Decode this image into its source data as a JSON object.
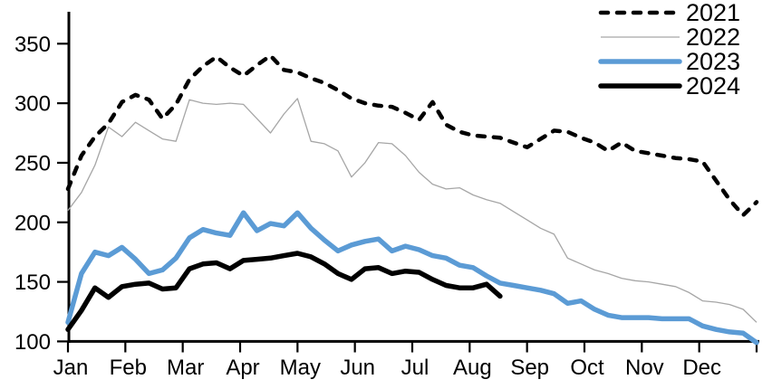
{
  "chart_data": {
    "type": "line",
    "title": "",
    "xlabel": "",
    "ylabel": "",
    "x_unit": "weekly points, Jan through Dec",
    "x_tick_labels": [
      "Jan",
      "Feb",
      "Mar",
      "Apr",
      "May",
      "Jun",
      "Jul",
      "Aug",
      "Sep",
      "Oct",
      "Nov",
      "Dec"
    ],
    "y_ticks": [
      100,
      150,
      200,
      250,
      300,
      350
    ],
    "ylim": [
      100,
      375
    ],
    "grid": false,
    "legend_position": "top-right",
    "axis_color": "#000000",
    "series": [
      {
        "name": "2021",
        "style": "dashed",
        "color": "#000000",
        "values": [
          228,
          256,
          272,
          283,
          301,
          307,
          303,
          287,
          299,
          320,
          331,
          339,
          330,
          323,
          332,
          340,
          328,
          326,
          321,
          317,
          311,
          304,
          300,
          298,
          297,
          292,
          286,
          301,
          282,
          276,
          273,
          272,
          271,
          267,
          263,
          270,
          277,
          276,
          271,
          267,
          260,
          267,
          260,
          258,
          256,
          254,
          253,
          251,
          235,
          219,
          206,
          217
        ]
      },
      {
        "name": "2022",
        "style": "thin",
        "color": "#A6A6A6",
        "values": [
          210,
          225,
          248,
          280,
          272,
          284,
          277,
          270,
          268,
          303,
          300,
          299,
          300,
          299,
          287,
          275,
          291,
          304,
          268,
          266,
          260,
          238,
          250,
          267,
          266,
          256,
          242,
          232,
          228,
          229,
          223,
          219,
          216,
          209,
          202,
          195,
          190,
          170,
          165,
          160,
          157,
          153,
          151,
          150,
          148,
          146,
          141,
          134,
          133,
          131,
          127,
          116
        ]
      },
      {
        "name": "2023",
        "style": "thick",
        "color": "#5B9BD5",
        "values": [
          116,
          157,
          175,
          172,
          179,
          169,
          157,
          160,
          170,
          187,
          194,
          191,
          189,
          208,
          193,
          199,
          197,
          208,
          195,
          185,
          176,
          181,
          184,
          186,
          176,
          180,
          177,
          172,
          170,
          164,
          162,
          155,
          149,
          147,
          145,
          143,
          140,
          132,
          134,
          127,
          122,
          120,
          120,
          120,
          119,
          119,
          119,
          113,
          110,
          108,
          107,
          99
        ]
      },
      {
        "name": "2024",
        "style": "thick",
        "color": "#000000",
        "values": [
          110,
          126,
          145,
          137,
          146,
          148,
          149,
          144,
          145,
          161,
          165,
          166,
          161,
          168,
          169,
          170,
          172,
          174,
          171,
          165,
          157,
          152,
          161,
          162,
          157,
          159,
          158,
          152,
          147,
          145,
          145,
          148,
          138
        ]
      }
    ]
  }
}
